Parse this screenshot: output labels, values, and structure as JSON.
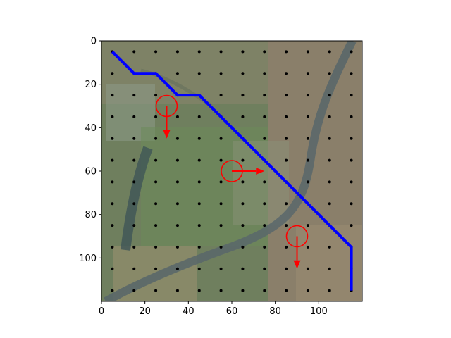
{
  "chart_data": {
    "type": "scatter",
    "title": "",
    "xlabel": "",
    "ylabel": "",
    "xlim": [
      0,
      120
    ],
    "ylim": [
      120,
      0
    ],
    "y_axis_inverted": true,
    "grid": false,
    "legend": "none",
    "background": "aerial satellite image (fields, trees, a river channel)",
    "x_ticks": [
      0,
      20,
      40,
      60,
      80,
      100
    ],
    "y_ticks": [
      0,
      20,
      40,
      60,
      80,
      100
    ],
    "grid_points": {
      "description": "black sample dots on a regular grid",
      "x_values": [
        5,
        15,
        25,
        35,
        45,
        55,
        65,
        75,
        85,
        95,
        105,
        115
      ],
      "y_values": [
        5,
        15,
        25,
        35,
        45,
        55,
        65,
        75,
        85,
        95,
        105,
        115
      ],
      "color": "#000000"
    },
    "path": {
      "color": "#0000ff",
      "points": [
        [
          5,
          5
        ],
        [
          15,
          15
        ],
        [
          25,
          15
        ],
        [
          35,
          25
        ],
        [
          45,
          25
        ],
        [
          115,
          95
        ],
        [
          115,
          115
        ]
      ]
    },
    "markers": {
      "color": "#ff0000",
      "items": [
        {
          "x": 30,
          "y": 30,
          "dx": 0,
          "dy": 15
        },
        {
          "x": 60,
          "y": 60,
          "dx": 15,
          "dy": 0
        },
        {
          "x": 90,
          "y": 90,
          "dx": 0,
          "dy": 15
        }
      ]
    }
  }
}
